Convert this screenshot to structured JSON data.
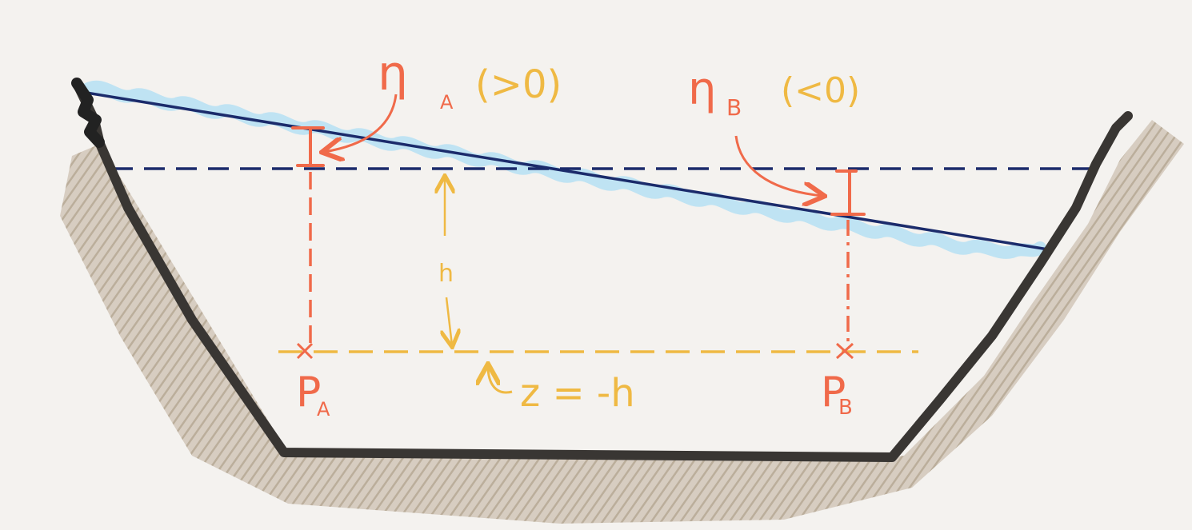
{
  "labels": {
    "eta_a": "η",
    "eta_a_sub": "A",
    "eta_a_cond": "(>0)",
    "eta_b": "η",
    "eta_b_sub": "B",
    "eta_b_cond": "(<0)",
    "depth": "h",
    "p_a": "P",
    "p_a_sub": "A",
    "p_b": "P",
    "p_b_sub": "B",
    "datum": "z = -h"
  },
  "colors": {
    "background": "#f4f2ef",
    "bank": "#393633",
    "soil": "#b7a895",
    "water_wave": "#bfe3f3",
    "free_surface": "#1b2b6b",
    "mean_level": "#1b2b6b",
    "pressure_marks": "#f06a4a",
    "datum_marks": "#efb943"
  }
}
